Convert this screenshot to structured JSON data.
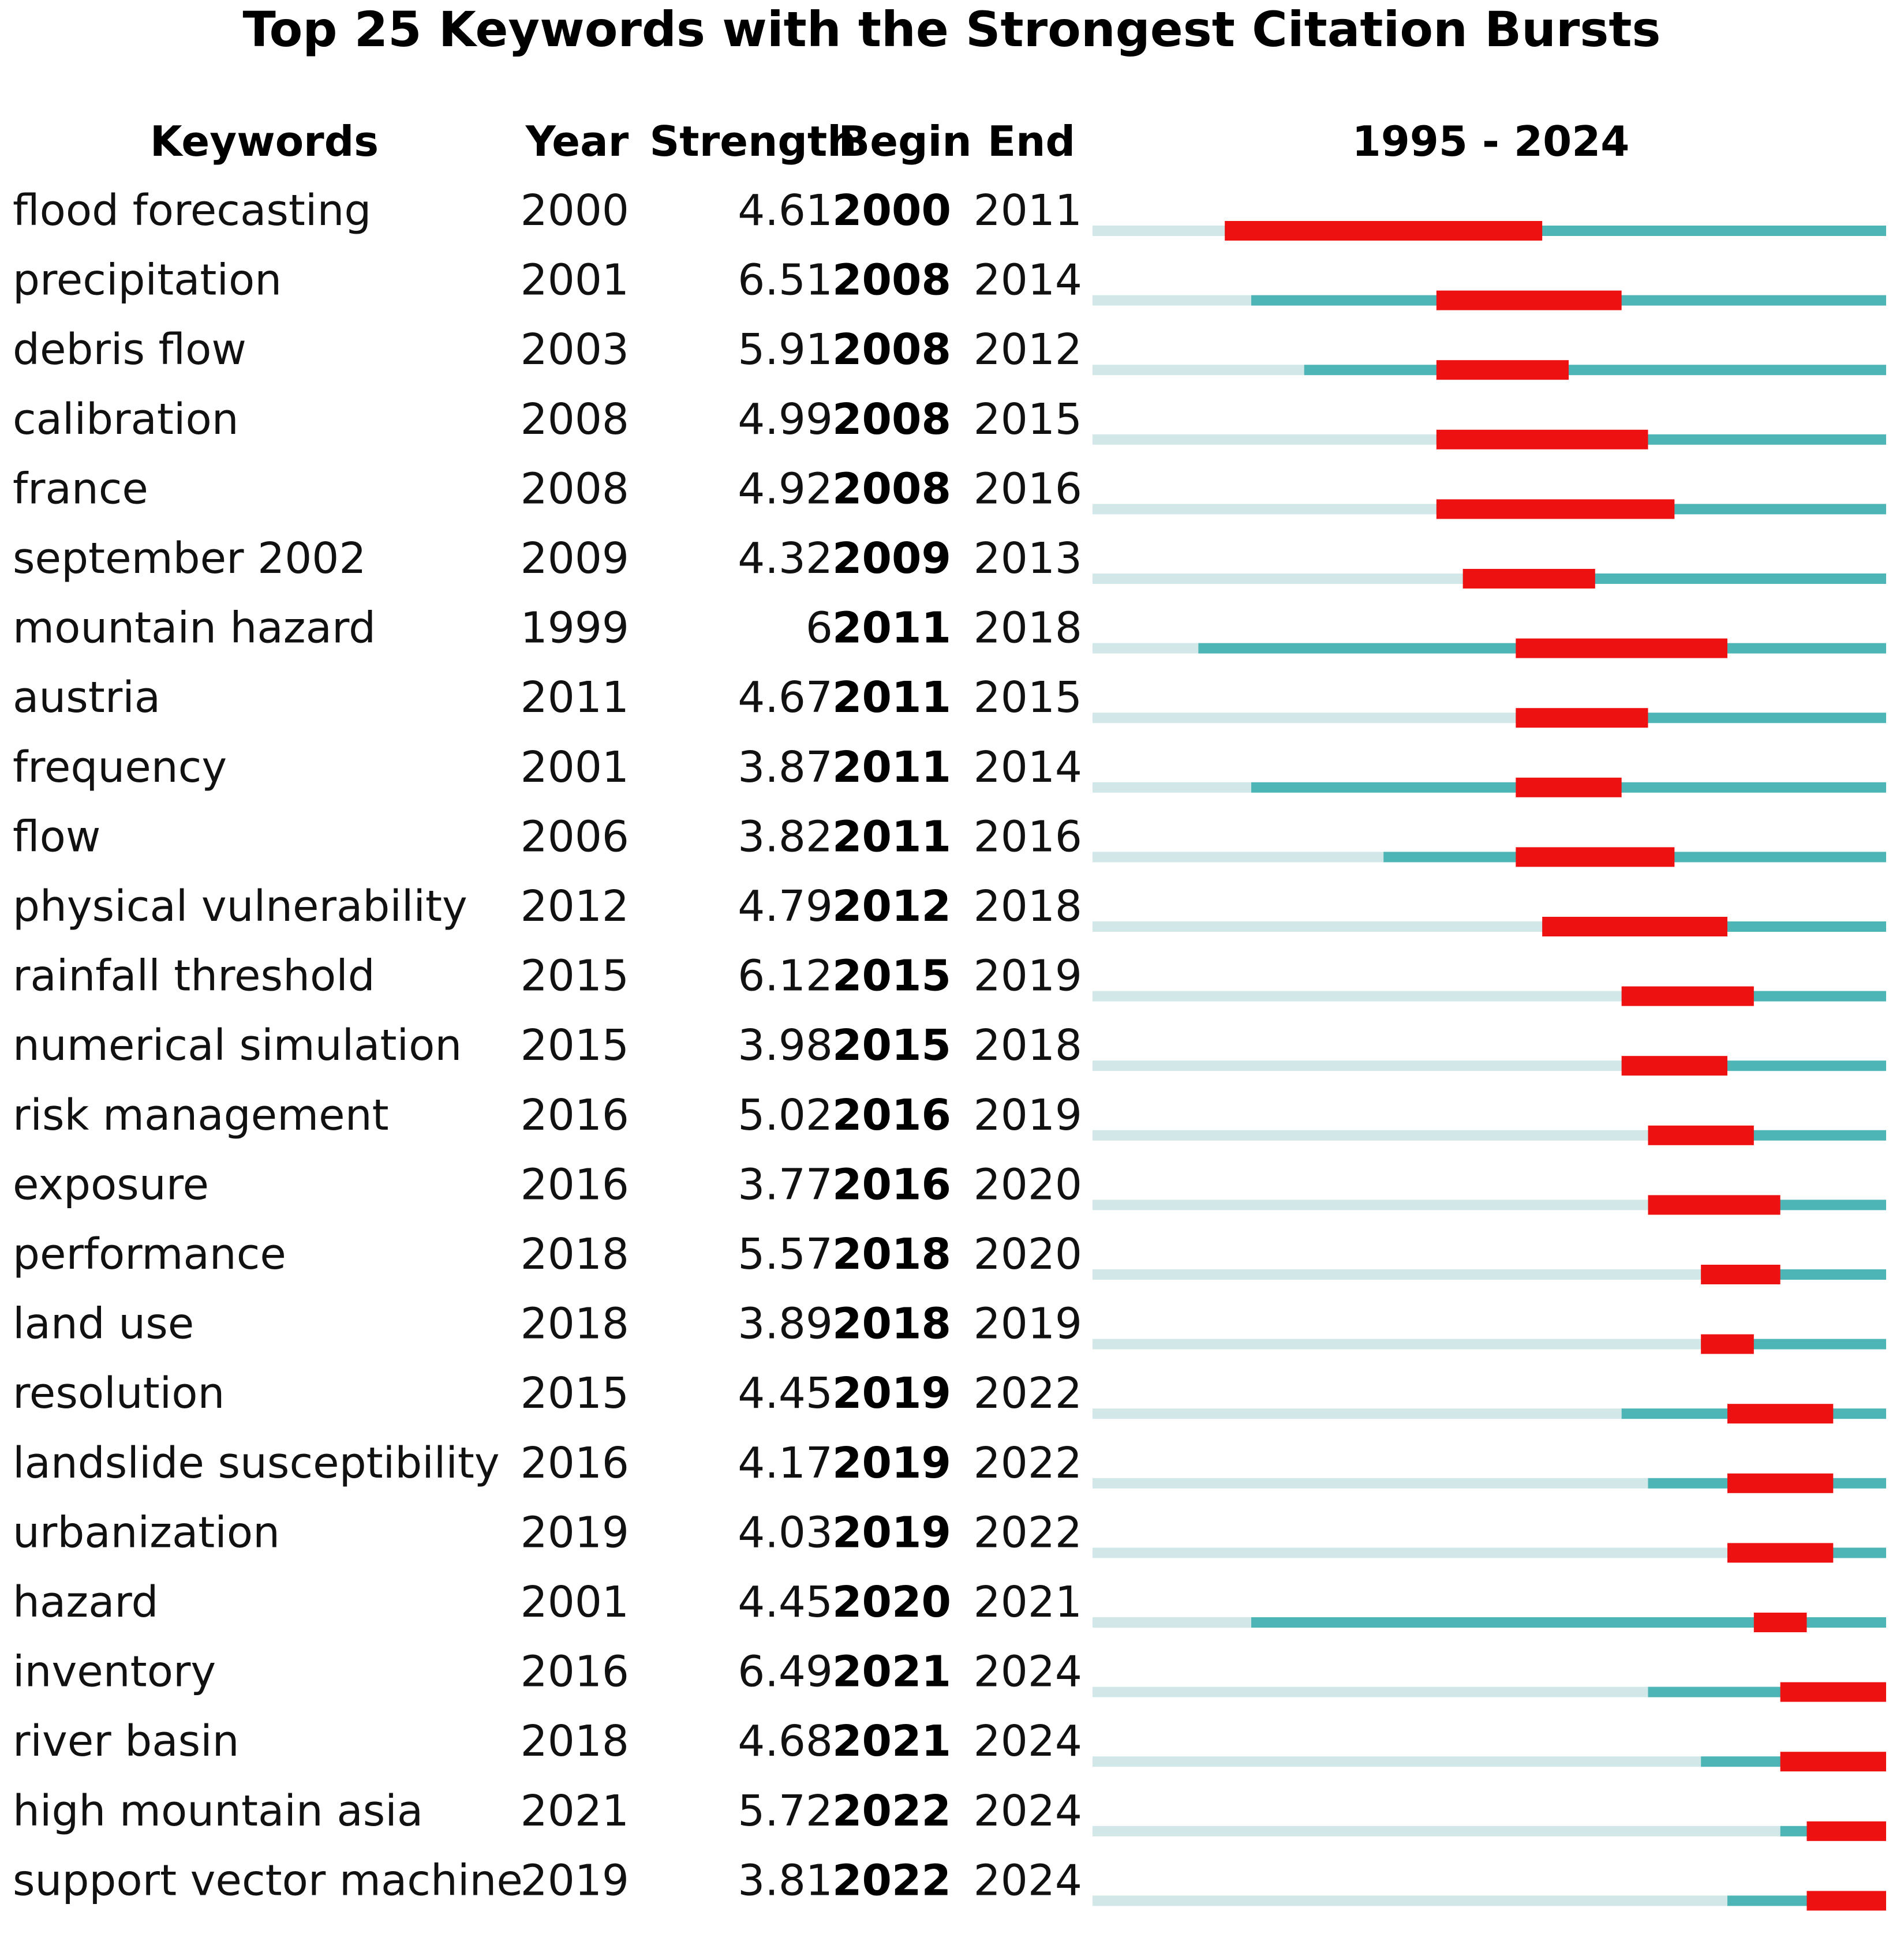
{
  "chart_data": {
    "type": "table",
    "title": "Top 25 Keywords with the Strongest Citation Bursts",
    "headers": {
      "keyword": "Keywords",
      "year": "Year",
      "strength": "Strength",
      "begin": "Begin",
      "end": "End",
      "range": "1995 - 2024"
    },
    "range_start": 1995,
    "range_end": 2024,
    "rows": [
      {
        "keyword": "flood forecasting",
        "year": "2000",
        "strength": "4.61",
        "begin": "2000",
        "end": "2011"
      },
      {
        "keyword": "precipitation",
        "year": "2001",
        "strength": "6.51",
        "begin": "2008",
        "end": "2014"
      },
      {
        "keyword": "debris flow",
        "year": "2003",
        "strength": "5.91",
        "begin": "2008",
        "end": "2012"
      },
      {
        "keyword": "calibration",
        "year": "2008",
        "strength": "4.99",
        "begin": "2008",
        "end": "2015"
      },
      {
        "keyword": "france",
        "year": "2008",
        "strength": "4.92",
        "begin": "2008",
        "end": "2016"
      },
      {
        "keyword": "september 2002",
        "year": "2009",
        "strength": "4.32",
        "begin": "2009",
        "end": "2013"
      },
      {
        "keyword": "mountain hazard",
        "year": "1999",
        "strength": "6",
        "begin": "2011",
        "end": "2018"
      },
      {
        "keyword": "austria",
        "year": "2011",
        "strength": "4.67",
        "begin": "2011",
        "end": "2015"
      },
      {
        "keyword": "frequency",
        "year": "2001",
        "strength": "3.87",
        "begin": "2011",
        "end": "2014"
      },
      {
        "keyword": "flow",
        "year": "2006",
        "strength": "3.82",
        "begin": "2011",
        "end": "2016"
      },
      {
        "keyword": "physical vulnerability",
        "year": "2012",
        "strength": "4.79",
        "begin": "2012",
        "end": "2018"
      },
      {
        "keyword": "rainfall threshold",
        "year": "2015",
        "strength": "6.12",
        "begin": "2015",
        "end": "2019"
      },
      {
        "keyword": "numerical simulation",
        "year": "2015",
        "strength": "3.98",
        "begin": "2015",
        "end": "2018"
      },
      {
        "keyword": "risk management",
        "year": "2016",
        "strength": "5.02",
        "begin": "2016",
        "end": "2019"
      },
      {
        "keyword": "exposure",
        "year": "2016",
        "strength": "3.77",
        "begin": "2016",
        "end": "2020"
      },
      {
        "keyword": "performance",
        "year": "2018",
        "strength": "5.57",
        "begin": "2018",
        "end": "2020"
      },
      {
        "keyword": "land use",
        "year": "2018",
        "strength": "3.89",
        "begin": "2018",
        "end": "2019"
      },
      {
        "keyword": "resolution",
        "year": "2015",
        "strength": "4.45",
        "begin": "2019",
        "end": "2022"
      },
      {
        "keyword": "landslide susceptibility",
        "year": "2016",
        "strength": "4.17",
        "begin": "2019",
        "end": "2022"
      },
      {
        "keyword": "urbanization",
        "year": "2019",
        "strength": "4.03",
        "begin": "2019",
        "end": "2022"
      },
      {
        "keyword": "hazard",
        "year": "2001",
        "strength": "4.45",
        "begin": "2020",
        "end": "2021"
      },
      {
        "keyword": "inventory",
        "year": "2016",
        "strength": "6.49",
        "begin": "2021",
        "end": "2024"
      },
      {
        "keyword": "river basin",
        "year": "2018",
        "strength": "4.68",
        "begin": "2021",
        "end": "2024"
      },
      {
        "keyword": "high mountain asia",
        "year": "2021",
        "strength": "5.72",
        "begin": "2022",
        "end": "2024"
      },
      {
        "keyword": "support vector machine",
        "year": "2019",
        "strength": "3.81",
        "begin": "2022",
        "end": "2024"
      }
    ],
    "colors": {
      "inactive": "#d2e8e8",
      "active": "#4db5b5",
      "burst": "#ee1111"
    }
  }
}
